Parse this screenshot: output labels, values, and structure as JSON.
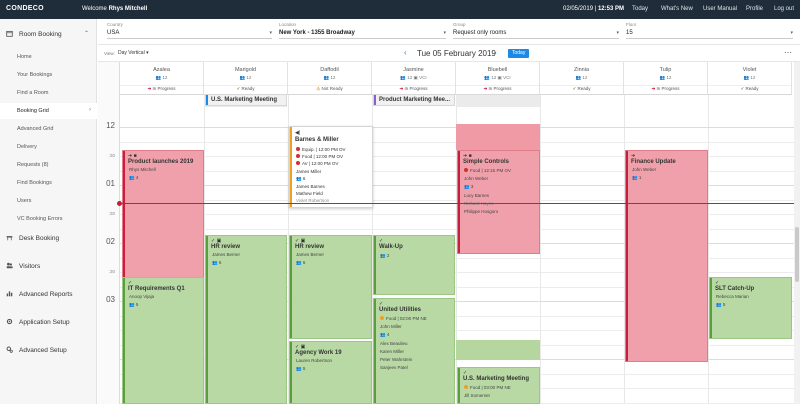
{
  "header": {
    "logo": "CONDECO",
    "welcome_prefix": "Welcome",
    "user": "Rhys Mitchell",
    "date": "02/05/2019",
    "time": "12:53 PM",
    "nav": [
      "Today",
      "What's New",
      "User Manual",
      "Profile",
      "Log out"
    ]
  },
  "sidebar": {
    "room_booking": "Room Booking",
    "sub_items": [
      "Home",
      "Your Bookings",
      "Find a Room",
      "Booking Grid",
      "Advanced Grid",
      "Delivery",
      "Requests (8)",
      "Find Bookings",
      "Users",
      "VC Booking Errors"
    ],
    "active_sub": "Booking Grid",
    "main_items": [
      "Desk Booking",
      "Visitors",
      "Advanced Reports",
      "Application Setup",
      "Advanced Setup"
    ]
  },
  "filters": {
    "country_label": "Country",
    "country": "USA",
    "location_label": "Location",
    "location": "New York - 1355 Broadway",
    "group_label": "Group",
    "group": "Request only rooms",
    "floor_label": "Floor",
    "floor": "15"
  },
  "datebar": {
    "view_label": "View:",
    "view_value": "Day Vertical",
    "date": "Tue 05 February 2019",
    "today_button": "Today",
    "more_icon": "ellipsis-icon"
  },
  "rooms": [
    {
      "name": "Azalea",
      "cap": "12",
      "vc": false,
      "status": "In Progress",
      "status_kind": "inprogress"
    },
    {
      "name": "Marigold",
      "cap": "12",
      "vc": false,
      "status": "Ready",
      "status_kind": "ready"
    },
    {
      "name": "Daffodil",
      "cap": "12",
      "vc": false,
      "status": "Not Ready",
      "status_kind": "notready"
    },
    {
      "name": "Jasmine",
      "cap": "12",
      "vc": true,
      "status": "In Progress",
      "status_kind": "inprogress"
    },
    {
      "name": "Bluebell",
      "cap": "12",
      "vc": true,
      "status": "In Progress",
      "status_kind": "inprogress"
    },
    {
      "name": "Zinnia",
      "cap": "12",
      "vc": false,
      "status": "Ready",
      "status_kind": "ready"
    },
    {
      "name": "Tulip",
      "cap": "12",
      "vc": false,
      "status": "In Progress",
      "status_kind": "inprogress"
    },
    {
      "name": "Violet",
      "cap": "12",
      "vc": false,
      "status": "Ready",
      "status_kind": "ready"
    }
  ],
  "vc_label": "VCI",
  "time_labels": [
    {
      "t": "12",
      "kind": "h"
    },
    {
      "t": ":30",
      "kind": "m"
    },
    {
      "t": "01",
      "kind": "h"
    },
    {
      "t": ":30",
      "kind": "m"
    },
    {
      "t": "02",
      "kind": "h"
    },
    {
      "t": ":30",
      "kind": "m"
    },
    {
      "t": "03",
      "kind": "h"
    }
  ],
  "bookings": {
    "pl2019": {
      "title": "Product launches 2019",
      "host": "Rhys Mitchell",
      "count": "4"
    },
    "usm1": {
      "title": "U.S. Marketing Meeting"
    },
    "pmm": {
      "title": "Product Marketing Mee..."
    },
    "barnes": {
      "title": "Barnes & Miller",
      "equip": "Equip. | 12:00 PM OV",
      "food": "Food | 12:00 PM OV",
      "av": "AV | 12:00 PM OV",
      "host": "James Miller",
      "count": "6",
      "attendees": [
        "James Barnes",
        "Mathew Field",
        "Violet Robertson"
      ]
    },
    "simple": {
      "title": "Simple Controls",
      "food": "Food | 12:15 PM OV",
      "host": "John Weber",
      "count": "3",
      "attendees": [
        "Lucy Barnes",
        "Richard Hayes",
        "Philippe Hosgoro"
      ]
    },
    "finance": {
      "title": "Finance Update",
      "host": "John Weber",
      "count": "1"
    },
    "hr1": {
      "title": "HR review",
      "host": "James Berner",
      "count": "6"
    },
    "hr2": {
      "title": "HR review",
      "host": "James Berner",
      "count": "6"
    },
    "walkup": {
      "title": "Walk-Up",
      "count": "2"
    },
    "itreq": {
      "title": "IT Requirements Q1",
      "host": "Anoop Vijaja",
      "count": "5"
    },
    "utilities": {
      "title": "United Utilities",
      "food": "Food | 02:00 PM NE",
      "host": "John Miller",
      "count": "4",
      "attendees": [
        "Alex Beaulieu",
        "Karen Miller",
        "Peter Wahrstein",
        "Sanjeev Patel"
      ]
    },
    "slt": {
      "title": "SLT Catch-Up",
      "host": "Rebecca Marian",
      "count": "5"
    },
    "agency": {
      "title": "Agency Work 19",
      "host": "Lauren Robertson",
      "count": "5"
    },
    "usm2": {
      "title": "U.S. Marketing Meeting",
      "food": "Food | 03:00 PM NE",
      "host": "Jill Somerset"
    }
  },
  "colors": {
    "red": "#c81e3c",
    "green": "#5a9e3a",
    "accent": "#1e88e5"
  }
}
